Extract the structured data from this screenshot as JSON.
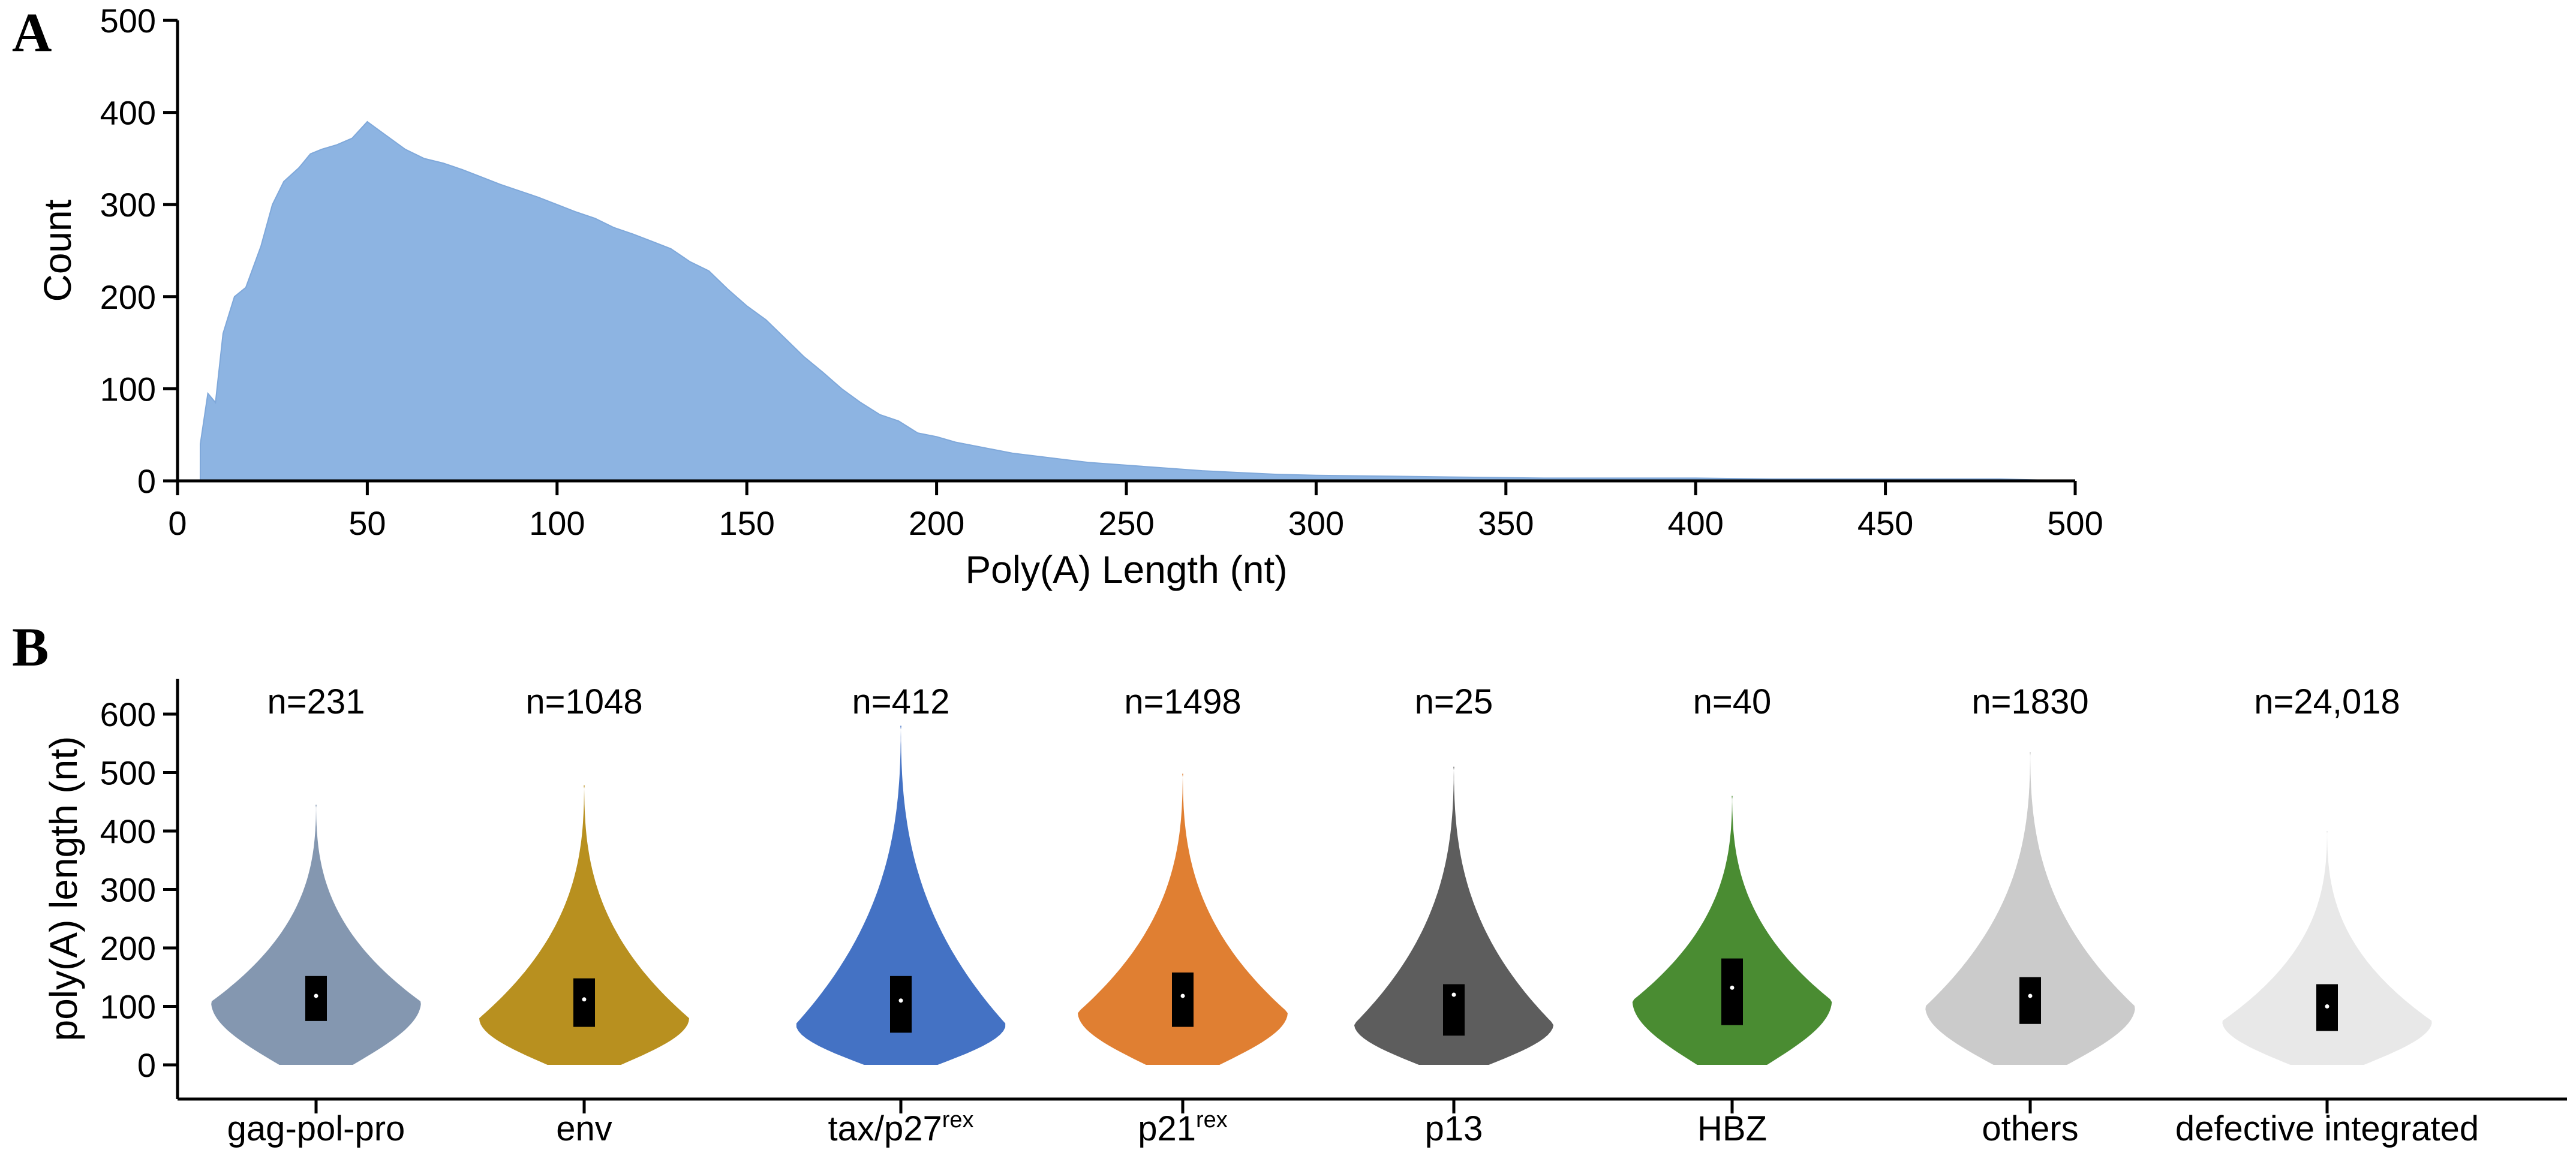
{
  "chart_data": [
    {
      "panel": "A",
      "type": "area",
      "xlabel": "Poly(A) Length (nt)",
      "ylabel": "Count",
      "xlim": [
        0,
        500
      ],
      "ylim": [
        0,
        500
      ],
      "x_ticks": [
        "0",
        "50",
        "100",
        "150",
        "200",
        "250",
        "300",
        "350",
        "400",
        "450",
        "500"
      ],
      "y_ticks": [
        "0",
        "100",
        "200",
        "300",
        "400",
        "500"
      ],
      "color": "#8db4e2",
      "points": [
        [
          6,
          40
        ],
        [
          8,
          95
        ],
        [
          10,
          85
        ],
        [
          12,
          160
        ],
        [
          15,
          200
        ],
        [
          18,
          210
        ],
        [
          22,
          255
        ],
        [
          25,
          300
        ],
        [
          28,
          325
        ],
        [
          32,
          340
        ],
        [
          35,
          355
        ],
        [
          38,
          360
        ],
        [
          42,
          365
        ],
        [
          46,
          372
        ],
        [
          50,
          390
        ],
        [
          55,
          375
        ],
        [
          60,
          360
        ],
        [
          65,
          350
        ],
        [
          70,
          345
        ],
        [
          75,
          338
        ],
        [
          80,
          330
        ],
        [
          85,
          322
        ],
        [
          90,
          315
        ],
        [
          95,
          308
        ],
        [
          100,
          300
        ],
        [
          105,
          292
        ],
        [
          110,
          285
        ],
        [
          115,
          275
        ],
        [
          120,
          268
        ],
        [
          125,
          260
        ],
        [
          130,
          252
        ],
        [
          135,
          238
        ],
        [
          140,
          228
        ],
        [
          145,
          208
        ],
        [
          150,
          190
        ],
        [
          155,
          175
        ],
        [
          160,
          155
        ],
        [
          165,
          135
        ],
        [
          170,
          118
        ],
        [
          175,
          100
        ],
        [
          180,
          85
        ],
        [
          185,
          72
        ],
        [
          190,
          65
        ],
        [
          195,
          52
        ],
        [
          200,
          48
        ],
        [
          205,
          42
        ],
        [
          210,
          38
        ],
        [
          220,
          30
        ],
        [
          230,
          25
        ],
        [
          240,
          20
        ],
        [
          250,
          17
        ],
        [
          260,
          14
        ],
        [
          270,
          11
        ],
        [
          280,
          9
        ],
        [
          290,
          7
        ],
        [
          300,
          6
        ],
        [
          320,
          5
        ],
        [
          340,
          4
        ],
        [
          360,
          3
        ],
        [
          380,
          3
        ],
        [
          400,
          3
        ],
        [
          420,
          2
        ],
        [
          440,
          2
        ],
        [
          460,
          2
        ],
        [
          480,
          2
        ],
        [
          490,
          1
        ]
      ]
    },
    {
      "panel": "B",
      "type": "violin",
      "ylabel": "poly(A) length (nt)",
      "ylim": [
        0,
        600
      ],
      "y_ticks": [
        "0",
        "100",
        "200",
        "300",
        "400",
        "500",
        "600"
      ],
      "groups": [
        {
          "label": "gag-pol-pro",
          "sup": "",
          "n": "n=231",
          "color": "#8497b0",
          "max": 445,
          "q1": 75,
          "median": 118,
          "q3": 152,
          "mode": 108,
          "width": 1.0
        },
        {
          "label": "env",
          "sup": "",
          "n": "n=1048",
          "color": "#b8901f",
          "max": 478,
          "q1": 65,
          "median": 112,
          "q3": 148,
          "mode": 80,
          "width": 1.0
        },
        {
          "label": "tax/p27",
          "sup": "rex",
          "n": "n=412",
          "color": "#4472c4",
          "max": 580,
          "q1": 55,
          "median": 110,
          "q3": 152,
          "mode": 70,
          "width": 1.0
        },
        {
          "label": "p21",
          "sup": "rex",
          "n": "n=1498",
          "color": "#e07f32",
          "max": 498,
          "q1": 65,
          "median": 118,
          "q3": 158,
          "mode": 90,
          "width": 1.0
        },
        {
          "label": "p13",
          "sup": "",
          "n": "n=25",
          "color": "#5d5d5d",
          "max": 510,
          "q1": 50,
          "median": 120,
          "q3": 138,
          "mode": 70,
          "width": 0.95
        },
        {
          "label": "HBZ",
          "sup": "",
          "n": "n=40",
          "color": "#4a8c32",
          "max": 460,
          "q1": 68,
          "median": 132,
          "q3": 182,
          "mode": 110,
          "width": 0.95
        },
        {
          "label": "others",
          "sup": "",
          "n": "n=1830",
          "color": "#cbcbcb",
          "max": 535,
          "q1": 70,
          "median": 118,
          "q3": 150,
          "mode": 100,
          "width": 1.0
        },
        {
          "label": "defective integrated",
          "sup": "",
          "n": "n=24,018",
          "color": "#e8e8e8",
          "max": 400,
          "q1": 58,
          "median": 100,
          "q3": 138,
          "mode": 75,
          "width": 1.0
        }
      ]
    }
  ],
  "panels": {
    "a_letter": "A",
    "b_letter": "B"
  }
}
